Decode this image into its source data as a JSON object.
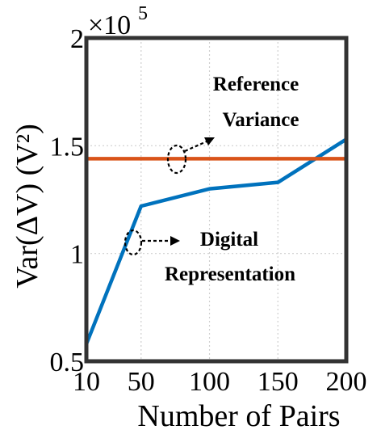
{
  "chart_data": {
    "type": "line",
    "title": "",
    "xlabel": "Number of Pairs",
    "ylabel": "Var(ΔV) (V²)",
    "y_multiplier": "×10",
    "y_multiplier_exponent": "5",
    "x_ticks": [
      10,
      50,
      100,
      150,
      200
    ],
    "y_ticks": [
      "0.5",
      "1",
      "1.5",
      "2"
    ],
    "xlim": [
      10,
      200
    ],
    "ylim": [
      0.5,
      2
    ],
    "grid": true,
    "series": [
      {
        "name": "",
        "color": "#0072BD",
        "x": [
          10,
          50,
          100,
          150,
          200
        ],
        "y": [
          0.58,
          1.22,
          1.3,
          1.33,
          1.53
        ]
      },
      {
        "name": "",
        "color": "#D95319",
        "x": [
          10,
          200
        ],
        "y": [
          1.44,
          1.44
        ]
      }
    ],
    "annotations": [
      {
        "lines": [
          "Reference",
          "Variance"
        ]
      },
      {
        "lines": [
          "Digital",
          "Representation"
        ]
      }
    ]
  }
}
